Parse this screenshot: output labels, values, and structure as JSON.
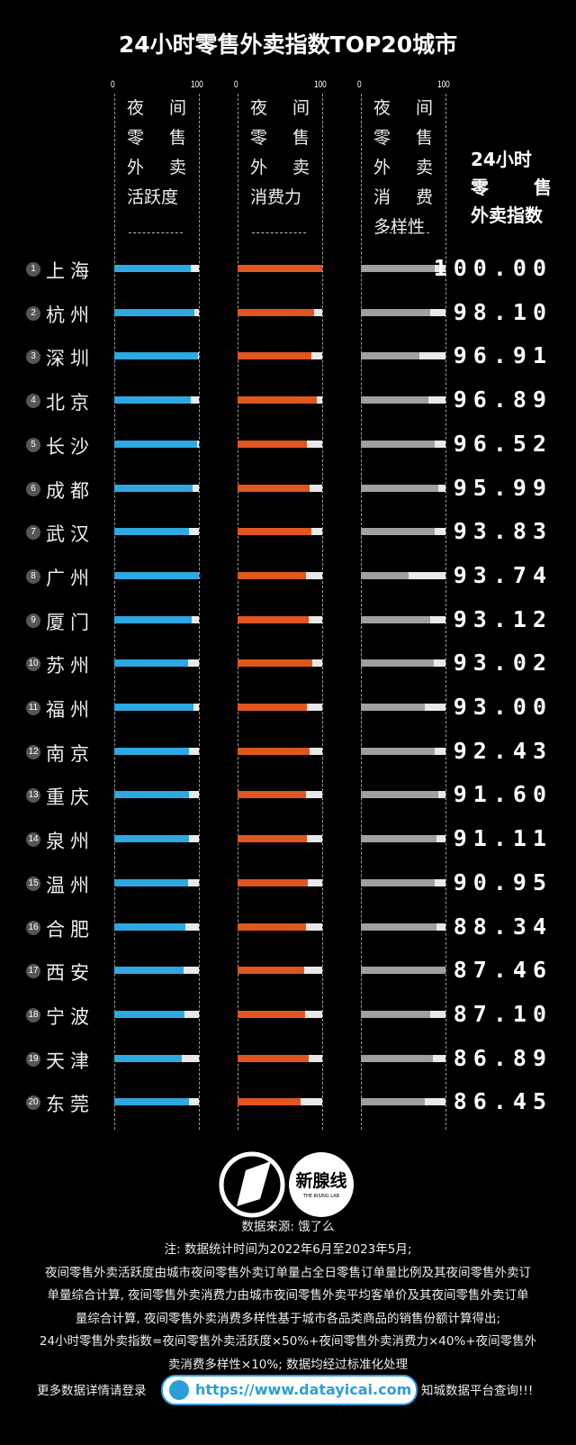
{
  "title": "24小时零售外卖指数TOP20城市",
  "axis": {
    "min_label": "0",
    "max_label": "100"
  },
  "columns": [
    {
      "lines": [
        [
          "夜",
          "间"
        ],
        [
          "零",
          "售"
        ],
        [
          "外",
          "卖"
        ],
        [
          "活跃度"
        ]
      ],
      "color": "#2ea8e0"
    },
    {
      "lines": [
        [
          "夜",
          "间"
        ],
        [
          "零",
          "售"
        ],
        [
          "外",
          "卖"
        ],
        [
          "消费力"
        ]
      ],
      "color": "#e0561e"
    },
    {
      "lines": [
        [
          "夜",
          "间"
        ],
        [
          "零",
          "售"
        ],
        [
          "外",
          "卖"
        ],
        [
          "消",
          "费"
        ],
        [
          "多样性"
        ]
      ],
      "color": "#a0a0a0"
    }
  ],
  "separator": "-----------",
  "index_header": [
    [
      "24小时"
    ],
    [
      "零",
      "售"
    ],
    [
      "外卖指数"
    ]
  ],
  "chart_data": {
    "type": "bar",
    "title": "24小时零售外卖指数TOP20城市",
    "xlim": [
      0,
      100
    ],
    "series_names": [
      "夜间零售外卖活跃度",
      "夜间零售外卖消费力",
      "夜间零售外卖消费多样性"
    ],
    "rows": [
      {
        "rank": "1",
        "city": "上海",
        "v": [
          90,
          100,
          87
        ],
        "score": "100.00"
      },
      {
        "rank": "2",
        "city": "杭州",
        "v": [
          95,
          90,
          82
        ],
        "score": "98.10"
      },
      {
        "rank": "3",
        "city": "深圳",
        "v": [
          99,
          87,
          69
        ],
        "score": "96.91"
      },
      {
        "rank": "4",
        "city": "北京",
        "v": [
          90,
          94,
          80
        ],
        "score": "96.89"
      },
      {
        "rank": "5",
        "city": "长沙",
        "v": [
          98,
          82,
          87
        ],
        "score": "96.52"
      },
      {
        "rank": "6",
        "city": "成都",
        "v": [
          93,
          85,
          92
        ],
        "score": "95.99"
      },
      {
        "rank": "7",
        "city": "武汉",
        "v": [
          88,
          87,
          87
        ],
        "score": "93.83"
      },
      {
        "rank": "8",
        "city": "广州",
        "v": [
          100,
          81,
          56
        ],
        "score": "93.74"
      },
      {
        "rank": "9",
        "city": "厦门",
        "v": [
          91,
          84,
          82
        ],
        "score": "93.12"
      },
      {
        "rank": "10",
        "city": "苏州",
        "v": [
          87,
          88,
          86
        ],
        "score": "93.02"
      },
      {
        "rank": "11",
        "city": "福州",
        "v": [
          94,
          82,
          75
        ],
        "score": "93.00"
      },
      {
        "rank": "12",
        "city": "南京",
        "v": [
          88,
          85,
          87
        ],
        "score": "92.43"
      },
      {
        "rank": "13",
        "city": "重庆",
        "v": [
          88,
          81,
          92
        ],
        "score": "91.60"
      },
      {
        "rank": "14",
        "city": "泉州",
        "v": [
          88,
          82,
          89
        ],
        "score": "91.11"
      },
      {
        "rank": "15",
        "city": "温州",
        "v": [
          87,
          83,
          87
        ],
        "score": "90.95"
      },
      {
        "rank": "16",
        "city": "合肥",
        "v": [
          84,
          81,
          89
        ],
        "score": "88.34"
      },
      {
        "rank": "17",
        "city": "西安",
        "v": [
          82,
          79,
          100
        ],
        "score": "87.46"
      },
      {
        "rank": "18",
        "city": "宁波",
        "v": [
          83,
          80,
          82
        ],
        "score": "87.10"
      },
      {
        "rank": "19",
        "city": "天津",
        "v": [
          80,
          84,
          85
        ],
        "score": "86.89"
      },
      {
        "rank": "20",
        "city": "东莞",
        "v": [
          88,
          74,
          75
        ],
        "score": "86.45"
      }
    ]
  },
  "logos": {
    "right_logo_text": "新腺线",
    "right_logo_sub": "THE RISING LAB"
  },
  "footer": {
    "source": "数据来源: 饿了么",
    "notes": [
      "注: 数据统计时间为2022年6月至2023年5月;",
      "夜间零售外卖活跃度由城市夜间零售外卖订单量占全日零售订单量比例及其夜间零售外卖订",
      "单量综合计算, 夜间零售外卖消费力由城市夜间零售外卖平均客单价及其夜间零售外卖订单",
      "量综合计算, 夜间零售外卖消费多样性基于城市各品类商品的销售份额计算得出;",
      "24小时零售外卖指数=夜间零售外卖活跃度×50%+夜间零售外卖消费力×40%+夜间零售外",
      "卖消费多样性×10%; 数据均经过标准化处理"
    ],
    "link_prefix": "更多数据详情请登录",
    "link_url": "https://www.datayicai.com",
    "link_suffix": "知城数据平台查询!!!"
  }
}
